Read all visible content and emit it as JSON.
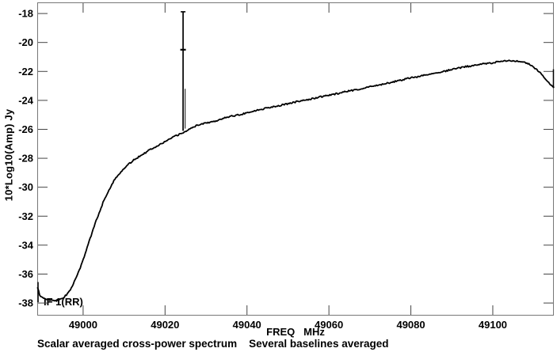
{
  "plot": {
    "y_axis": {
      "label": "10*Log10(Amp) Jy"
    },
    "x_axis": {
      "label": "FREQ   MHz"
    },
    "annotation": "IF 1(RR)",
    "caption": "Scalar averaged cross-power spectrum    Several baselines averaged"
  },
  "chart_data": {
    "type": "line",
    "title": "Scalar averaged cross-power spectrum",
    "subtitle": "Several baselines averaged",
    "xlabel": "FREQ MHz",
    "ylabel": "10*Log10(Amp) Jy",
    "xlim": [
      48988.8,
      49114.9
    ],
    "ylim": [
      -38.87,
      -17.23
    ],
    "x_ticks": [
      49000,
      49020,
      49040,
      49060,
      49080,
      49100
    ],
    "y_ticks": [
      -18,
      -20,
      -22,
      -24,
      -26,
      -28,
      -30,
      -32,
      -34,
      -36,
      -38
    ],
    "grid": false,
    "legend": "none",
    "series": [
      {
        "name": "IF 1(RR)",
        "color": "#000000",
        "points": [
          [
            48988.9,
            -37.0
          ],
          [
            48989.5,
            -37.5
          ],
          [
            48990.5,
            -37.7
          ],
          [
            48992,
            -37.8
          ],
          [
            48993,
            -37.85
          ],
          [
            48994,
            -37.8
          ],
          [
            48995,
            -37.7
          ],
          [
            48996,
            -37.4
          ],
          [
            48997,
            -37.0
          ],
          [
            48998,
            -36.45
          ],
          [
            48999,
            -35.8
          ],
          [
            49000,
            -35.0
          ],
          [
            49001,
            -34.15
          ],
          [
            49002,
            -33.3
          ],
          [
            49003,
            -32.45
          ],
          [
            49004,
            -31.7
          ],
          [
            49005,
            -30.95
          ],
          [
            49006,
            -30.35
          ],
          [
            49007,
            -29.8
          ],
          [
            49008,
            -29.35
          ],
          [
            49009,
            -29.0
          ],
          [
            49010,
            -28.7
          ],
          [
            49011,
            -28.45
          ],
          [
            49012,
            -28.2
          ],
          [
            49013,
            -28.0
          ],
          [
            49014,
            -27.8
          ],
          [
            49015,
            -27.65
          ],
          [
            49016,
            -27.45
          ],
          [
            49017,
            -27.3
          ],
          [
            49018,
            -27.15
          ],
          [
            49019,
            -27.0
          ],
          [
            49020,
            -26.85
          ],
          [
            49021,
            -26.7
          ],
          [
            49022,
            -26.55
          ],
          [
            49023,
            -26.4
          ],
          [
            49024,
            -26.3
          ],
          [
            49025,
            -26.15
          ],
          [
            49026,
            -25.95
          ],
          [
            49027,
            -25.85
          ],
          [
            49028,
            -25.7
          ],
          [
            49030,
            -25.55
          ],
          [
            49032,
            -25.45
          ],
          [
            49034,
            -25.25
          ],
          [
            49036,
            -25.1
          ],
          [
            49038,
            -25.0
          ],
          [
            49040,
            -24.85
          ],
          [
            49043,
            -24.65
          ],
          [
            49046,
            -24.45
          ],
          [
            49049,
            -24.3
          ],
          [
            49052,
            -24.1
          ],
          [
            49055,
            -23.95
          ],
          [
            49058,
            -23.75
          ],
          [
            49061,
            -23.6
          ],
          [
            49064,
            -23.4
          ],
          [
            49067,
            -23.25
          ],
          [
            49070,
            -23.05
          ],
          [
            49073,
            -22.9
          ],
          [
            49076,
            -22.7
          ],
          [
            49079,
            -22.5
          ],
          [
            49082,
            -22.35
          ],
          [
            49085,
            -22.15
          ],
          [
            49088,
            -22.0
          ],
          [
            49091,
            -21.8
          ],
          [
            49094,
            -21.65
          ],
          [
            49097,
            -21.5
          ],
          [
            49099,
            -21.45
          ],
          [
            49101,
            -21.35
          ],
          [
            49103,
            -21.3
          ],
          [
            49105,
            -21.25
          ],
          [
            49107,
            -21.3
          ],
          [
            49108.5,
            -21.45
          ],
          [
            49110,
            -21.7
          ],
          [
            49111.5,
            -22.1
          ],
          [
            49113,
            -22.55
          ],
          [
            49114.3,
            -22.95
          ],
          [
            49114.9,
            -23.05
          ]
        ]
      }
    ],
    "spike": {
      "freq": 49024.4,
      "peak_db": -17.88,
      "base_db": -26.1,
      "marker_db": -20.5,
      "secondary_freq": 49024.9,
      "secondary_top_db": -23.2,
      "secondary_base_db": -25.95
    },
    "edge_markers": [
      {
        "freq": 48989.0,
        "from_db": -36.55,
        "to_db": -37.95
      },
      {
        "freq": 49114.8,
        "from_db": -21.85,
        "to_db": -23.15
      }
    ],
    "colors": {
      "trace": "#000000",
      "frame": "#777777",
      "tick": "#444444",
      "text": "#000000",
      "bg": "#ffffff"
    }
  }
}
